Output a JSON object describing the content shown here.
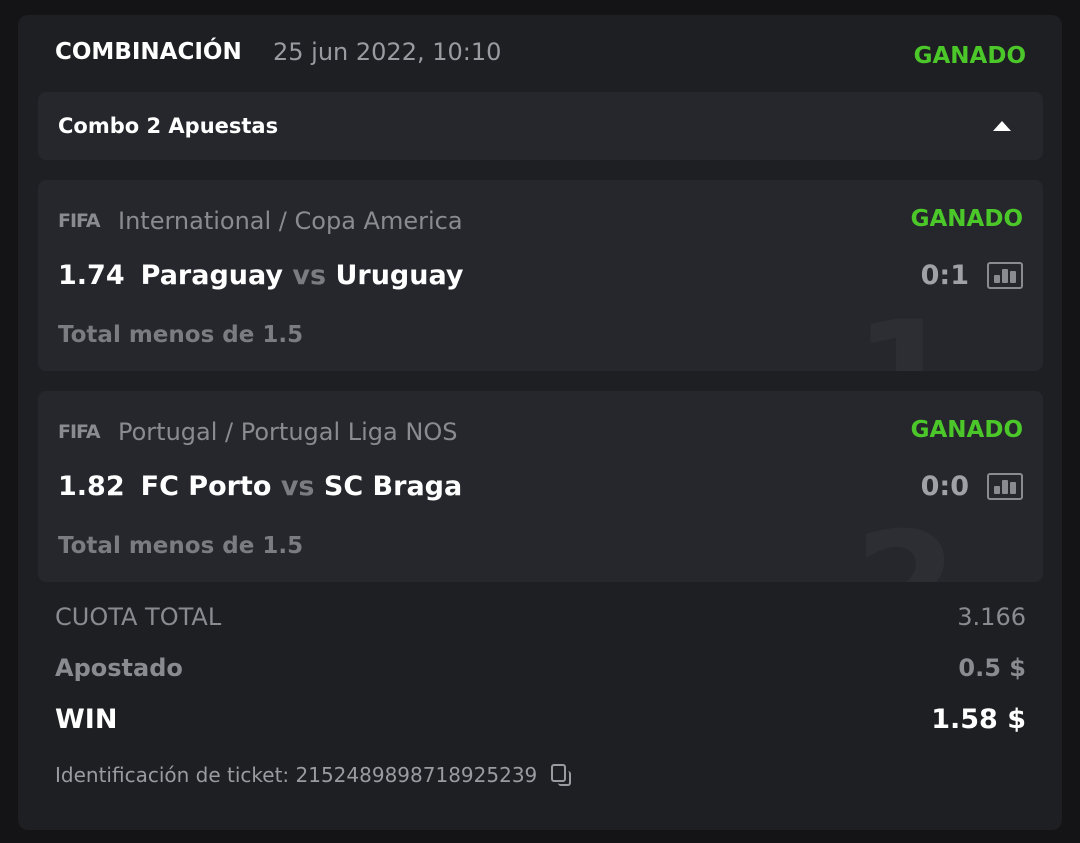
{
  "header": {
    "title": "COMBINACIÓN",
    "date": "25 jun 2022, 10:10",
    "status": "GANADO"
  },
  "combo": {
    "label": "Combo 2 Apuestas",
    "toggle_icon": "caret-up-icon"
  },
  "bets": [
    {
      "index": "1",
      "sport_logo": "FIFA",
      "league": "International / Copa America",
      "status": "GANADO",
      "odds": "1.74",
      "home": "Paraguay",
      "vs": "vs",
      "away": "Uruguay",
      "score": "0:1",
      "market": "Total menos de 1.5"
    },
    {
      "index": "2",
      "sport_logo": "FIFA",
      "league": "Portugal / Portugal Liga NOS",
      "status": "GANADO",
      "odds": "1.82",
      "home": "FC Porto",
      "vs": "vs",
      "away": "SC Braga",
      "score": "0:0",
      "market": "Total menos de 1.5"
    }
  ],
  "summary": {
    "total_odds_label": "CUOTA TOTAL",
    "total_odds": "3.166",
    "stake_label": "Apostado",
    "stake": "0.5 $",
    "win_label": "WIN",
    "win": "1.58 $",
    "ticket_label": "Identificación de ticket: 2152489898718925239"
  },
  "colors": {
    "win_green": "#4cc72a",
    "card_bg": "#1e1f23",
    "inner_bg": "#26272c"
  }
}
